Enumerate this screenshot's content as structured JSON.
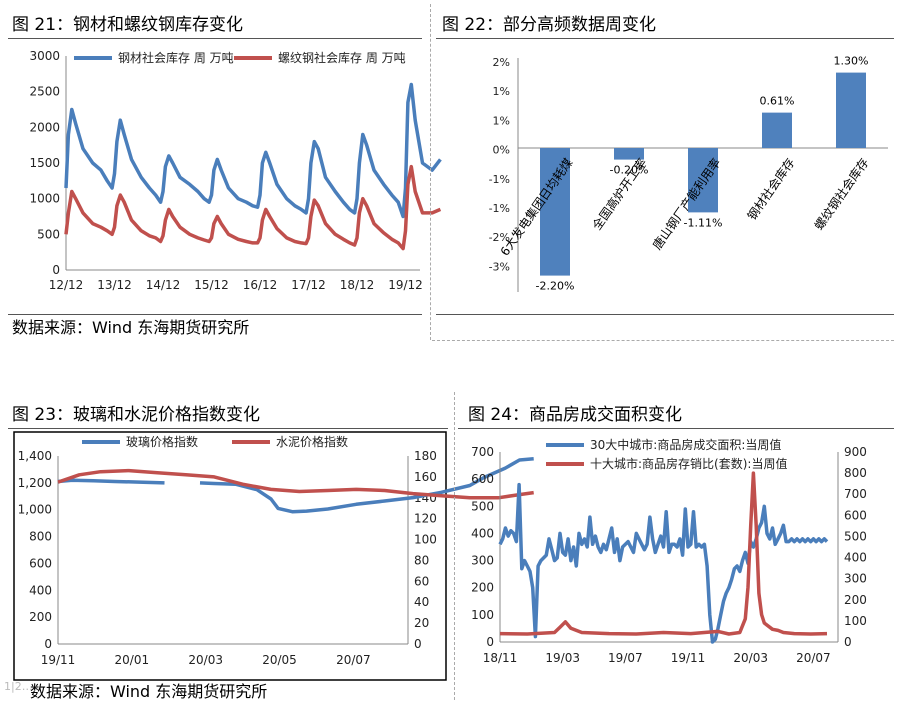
{
  "source_text": "数据来源：Wind   东海期货研究所",
  "watermark": "1|2…",
  "colors": {
    "blue": "#4a7ebb",
    "red": "#c0504d",
    "bar": "#4f81bd"
  },
  "chart_data": [
    {
      "id": "c21",
      "type": "line",
      "title": "图 21：钢材和螺纹钢库存变化",
      "x_ticks": [
        "12/12",
        "13/12",
        "14/12",
        "15/12",
        "16/12",
        "17/12",
        "18/12",
        "19/12"
      ],
      "ylim": [
        0,
        3000
      ],
      "y_ticks": [
        0,
        500,
        1000,
        1500,
        2000,
        2500,
        3000
      ],
      "series": [
        {
          "name": "钢材社会库存 周 万吨",
          "color": "#4a7ebb",
          "x": [
            0,
            0.05,
            0.12,
            0.2,
            0.35,
            0.55,
            0.72,
            0.85,
            0.95,
            1.0,
            1.05,
            1.12,
            1.2,
            1.35,
            1.55,
            1.72,
            1.85,
            1.95,
            2.0,
            2.05,
            2.12,
            2.2,
            2.35,
            2.55,
            2.72,
            2.85,
            2.95,
            3.0,
            3.05,
            3.12,
            3.2,
            3.35,
            3.55,
            3.72,
            3.85,
            3.95,
            4.0,
            4.05,
            4.12,
            4.2,
            4.35,
            4.55,
            4.72,
            4.85,
            4.95,
            5.0,
            5.05,
            5.12,
            5.2,
            5.35,
            5.55,
            5.72,
            5.85,
            5.95,
            6.0,
            6.05,
            6.12,
            6.2,
            6.35,
            6.55,
            6.72,
            6.85,
            6.95,
            7.0,
            7.05,
            7.12,
            7.2,
            7.35,
            7.55,
            7.72
          ],
          "y": [
            1150,
            1900,
            2250,
            2050,
            1700,
            1500,
            1400,
            1250,
            1150,
            1350,
            1800,
            2100,
            1900,
            1550,
            1300,
            1150,
            1050,
            950,
            1100,
            1450,
            1600,
            1500,
            1300,
            1200,
            1100,
            1000,
            950,
            1050,
            1400,
            1550,
            1400,
            1150,
            1000,
            950,
            900,
            880,
            1050,
            1500,
            1650,
            1500,
            1200,
            1000,
            900,
            850,
            800,
            1000,
            1500,
            1800,
            1700,
            1300,
            1100,
            950,
            850,
            800,
            1000,
            1500,
            1900,
            1750,
            1400,
            1200,
            1050,
            950,
            750,
            1150,
            2350,
            2600,
            2100,
            1500,
            1400,
            1550
          ]
        },
        {
          "name": "螺纹钢社会库存 周 万吨",
          "color": "#c0504d",
          "x": [
            0,
            0.05,
            0.12,
            0.2,
            0.35,
            0.55,
            0.72,
            0.85,
            0.95,
            1.0,
            1.05,
            1.12,
            1.2,
            1.35,
            1.55,
            1.72,
            1.85,
            1.95,
            2.0,
            2.05,
            2.12,
            2.2,
            2.35,
            2.55,
            2.72,
            2.85,
            2.95,
            3.0,
            3.05,
            3.12,
            3.2,
            3.35,
            3.55,
            3.72,
            3.85,
            3.95,
            4.0,
            4.05,
            4.12,
            4.2,
            4.35,
            4.55,
            4.72,
            4.85,
            4.95,
            5.0,
            5.05,
            5.12,
            5.2,
            5.35,
            5.55,
            5.72,
            5.85,
            5.95,
            6.0,
            6.05,
            6.12,
            6.2,
            6.35,
            6.55,
            6.72,
            6.85,
            6.95,
            7.0,
            7.05,
            7.12,
            7.2,
            7.35,
            7.55,
            7.72
          ],
          "y": [
            500,
            800,
            1100,
            1000,
            800,
            650,
            600,
            550,
            500,
            600,
            900,
            1050,
            950,
            700,
            550,
            480,
            450,
            400,
            480,
            700,
            850,
            750,
            600,
            500,
            450,
            420,
            400,
            450,
            650,
            750,
            650,
            500,
            430,
            400,
            380,
            380,
            450,
            700,
            850,
            750,
            580,
            450,
            400,
            380,
            370,
            450,
            750,
            980,
            900,
            650,
            500,
            430,
            380,
            350,
            450,
            800,
            1000,
            900,
            650,
            520,
            430,
            380,
            300,
            550,
            1200,
            1450,
            1100,
            800,
            800,
            850
          ]
        }
      ]
    },
    {
      "id": "c22",
      "type": "bar",
      "title": "图 22：部分高频数据周变化",
      "categories": [
        "6大发电集团日均耗煤",
        "全国高炉开工率",
        "唐山钢厂产能利用率",
        "钢材社会库存",
        "螺纹钢社会库存"
      ],
      "values": [
        -2.2,
        -0.2,
        -1.11,
        0.61,
        1.3
      ],
      "data_labels": [
        "-2.20%",
        "-0.20%",
        "-1.11%",
        "0.61%",
        "1.30%"
      ],
      "ylim": [
        -1.5,
        1.5
      ],
      "y_tick_labels": [
        "2%",
        "1%",
        "1%",
        "0%",
        "-1%",
        "-1%",
        "-2%",
        "-3%"
      ]
    },
    {
      "id": "c23",
      "type": "line",
      "title": "图 23：玻璃和水泥价格指数变化",
      "x_ticks": [
        "19/11",
        "20/01",
        "20/03",
        "20/05",
        "20/07"
      ],
      "ylim_left": [
        0,
        1400
      ],
      "y_ticks_left": [
        "0",
        "200",
        "400",
        "600",
        "800",
        "1,000",
        "1,200",
        "1,400"
      ],
      "ylim_right": [
        0,
        180
      ],
      "y_ticks_right": [
        "0",
        "20",
        "40",
        "60",
        "80",
        "100",
        "120",
        "140",
        "160",
        "180"
      ],
      "series": [
        {
          "name": "玻璃价格指数",
          "color": "#4a7ebb",
          "axis": "left",
          "x": [
            0,
            0.2,
            0.5,
            0.8,
            1.2,
            1.5,
            1.8,
            2.0,
            2.2,
            2.5,
            2.8,
            3.0,
            3.1,
            3.3,
            3.5,
            3.8,
            4.2,
            4.6,
            5.0,
            5.4,
            5.8,
            6.0,
            6.3,
            6.5,
            6.7
          ],
          "y": [
            1210,
            1220,
            1215,
            1210,
            1205,
            1200,
            null,
            1200,
            1195,
            1190,
            1150,
            1080,
            1010,
            985,
            990,
            1005,
            1040,
            1065,
            1090,
            1130,
            1180,
            1240,
            1310,
            1370,
            1380
          ]
        },
        {
          "name": "水泥价格指数",
          "color": "#c0504d",
          "axis": "right",
          "x": [
            0,
            0.3,
            0.6,
            1.0,
            1.4,
            1.8,
            2.2,
            2.6,
            3.0,
            3.4,
            3.8,
            4.2,
            4.6,
            5.0,
            5.4,
            5.8,
            6.2,
            6.5,
            6.7
          ],
          "y": [
            155,
            162,
            165,
            166,
            164,
            162,
            160,
            153,
            148,
            146,
            147,
            148,
            147,
            144,
            142,
            140,
            140,
            143,
            145
          ]
        }
      ]
    },
    {
      "id": "c24",
      "type": "line",
      "title": "图 24：商品房成交面积变化",
      "x_ticks": [
        "18/11",
        "19/03",
        "19/07",
        "19/11",
        "20/03",
        "20/07"
      ],
      "ylim_left": [
        0,
        700
      ],
      "y_ticks_left": [
        "0",
        "100",
        "200",
        "300",
        "400",
        "500",
        "600",
        "700"
      ],
      "ylim_right": [
        0,
        900
      ],
      "y_ticks_right": [
        "0",
        "100",
        "200",
        "300",
        "400",
        "500",
        "600",
        "700",
        "800",
        "900"
      ],
      "series": [
        {
          "name": "30大中城市:商品房成交面积:当周值",
          "color": "#4a7ebb",
          "axis": "left",
          "x": [
            0,
            0.05,
            0.1,
            0.15,
            0.2,
            0.25,
            0.3,
            0.35,
            0.4,
            0.45,
            0.5,
            0.55,
            0.6,
            0.65,
            0.7,
            0.75,
            0.8,
            0.85,
            0.9,
            0.95,
            1.0,
            1.05,
            1.1,
            1.15,
            1.2,
            1.25,
            1.3,
            1.35,
            1.4,
            1.45,
            1.5,
            1.55,
            1.6,
            1.65,
            1.7,
            1.75,
            1.8,
            1.85,
            1.9,
            1.95,
            2.0,
            2.05,
            2.1,
            2.15,
            2.2,
            2.25,
            2.3,
            2.35,
            2.4,
            2.45,
            2.5,
            2.55,
            2.6,
            2.65,
            2.7,
            2.75,
            2.8,
            2.85,
            2.9,
            2.95,
            3.0,
            3.05,
            3.1,
            3.15,
            3.2,
            3.25,
            3.3,
            3.35,
            3.4,
            3.45,
            3.5,
            3.55,
            3.6,
            3.65,
            3.7,
            3.75,
            3.8,
            3.85,
            3.9,
            3.95,
            4.0,
            4.05,
            4.1,
            4.15,
            4.2,
            4.25,
            4.3,
            4.35,
            4.4,
            4.45,
            4.5,
            4.55,
            4.6,
            4.65,
            4.7,
            4.75,
            4.8,
            4.85,
            4.9,
            4.95,
            5.0,
            5.05,
            5.1,
            5.15,
            5.2,
            5.25,
            5.3,
            5.35,
            5.4,
            5.45,
            5.5,
            5.55,
            5.6,
            5.65,
            5.7,
            5.75,
            5.8,
            5.85,
            5.9,
            5.95,
            6.0
          ],
          "y": [
            360,
            380,
            420,
            390,
            410,
            400,
            370,
            580,
            270,
            300,
            280,
            260,
            200,
            20,
            280,
            300,
            310,
            320,
            380,
            340,
            300,
            310,
            400,
            330,
            320,
            380,
            300,
            350,
            280,
            400,
            360,
            380,
            350,
            460,
            360,
            390,
            350,
            330,
            360,
            340,
            380,
            420,
            330,
            380,
            300,
            350,
            360,
            370,
            350,
            330,
            400,
            380,
            360,
            340,
            360,
            460,
            380,
            330,
            360,
            390,
            350,
            480,
            330,
            360,
            360,
            350,
            380,
            320,
            490,
            350,
            360,
            480,
            350,
            360,
            350,
            360,
            280,
            100,
            0,
            10,
            50,
            100,
            150,
            180,
            200,
            230,
            270,
            280,
            260,
            300,
            330,
            290,
            370,
            350,
            380,
            420,
            440,
            500,
            400,
            380,
            420,
            360,
            380,
            400,
            430,
            370,
            370,
            380,
            370,
            380,
            370,
            380,
            370,
            380,
            370,
            380,
            370,
            380,
            370,
            380,
            370
          ],
          "y_note": ""
        },
        {
          "name": "十大城市:商品房存销比(套数):当周值",
          "color": "#c0504d",
          "axis": "right",
          "x": [
            0,
            0.5,
            1.0,
            1.1,
            1.2,
            1.3,
            1.5,
            2.0,
            2.5,
            3.0,
            3.5,
            4.0,
            4.2,
            4.4,
            4.5,
            4.55,
            4.6,
            4.65,
            4.7,
            4.75,
            4.8,
            4.85,
            4.9,
            5.0,
            5.1,
            5.2,
            5.4,
            5.7,
            6.0
          ],
          "y": [
            40,
            38,
            45,
            70,
            95,
            65,
            45,
            40,
            38,
            45,
            40,
            50,
            38,
            45,
            110,
            260,
            550,
            800,
            550,
            230,
            130,
            90,
            80,
            60,
            55,
            45,
            40,
            38,
            40
          ]
        }
      ]
    }
  ]
}
